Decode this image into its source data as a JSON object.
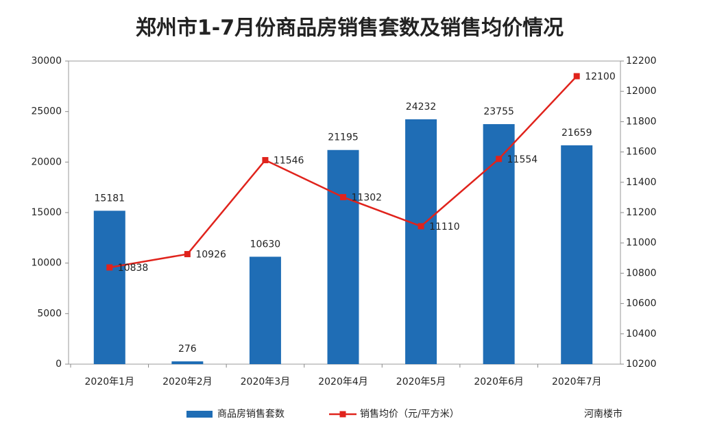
{
  "chart_data": {
    "type": "combo",
    "title": "郑州市1-7月份商品房销售套数及销售均价情况",
    "categories": [
      "2020年1月",
      "2020年2月",
      "2020年3月",
      "2020年4月",
      "2020年5月",
      "2020年6月",
      "2020年7月"
    ],
    "series": [
      {
        "name": "商品房销售套数",
        "type": "bar",
        "color": "#1f6db5",
        "values": [
          15181,
          276,
          10630,
          21195,
          24232,
          23755,
          21659
        ]
      },
      {
        "name": "销售均价（元/平方米）",
        "type": "line",
        "axis": "y2",
        "color": "#e0231c",
        "values": [
          10838,
          10926,
          11546,
          11302,
          11110,
          11554,
          12100
        ]
      }
    ],
    "ylim": [
      0,
      30000
    ],
    "yticks": [
      0,
      5000,
      10000,
      15000,
      20000,
      25000,
      30000
    ],
    "y2lim": [
      10200,
      12200
    ],
    "y2ticks": [
      10200,
      10400,
      10600,
      10800,
      11000,
      11200,
      11400,
      11600,
      11800,
      12000,
      12200
    ],
    "grid": false,
    "legend": "bottom",
    "watermark": "河南楼市"
  }
}
